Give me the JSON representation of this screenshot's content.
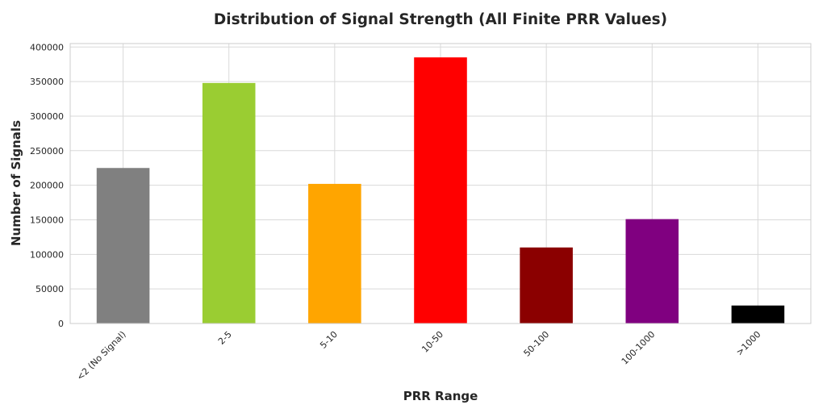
{
  "chart_data": {
    "type": "bar",
    "title": "Distribution of Signal Strength (All Finite PRR Values)",
    "xlabel": "PRR Range",
    "ylabel": "Number of Signals",
    "categories": [
      "<2 (No Signal)",
      "2-5",
      "5-10",
      "10-50",
      "50-100",
      "100-1000",
      ">1000"
    ],
    "values": [
      225000,
      348000,
      202000,
      385000,
      110000,
      151000,
      26000
    ],
    "colors": [
      "#808080",
      "#9acd32",
      "#ffa500",
      "#ff0000",
      "#8b0000",
      "#800080",
      "#000000"
    ],
    "ylim": [
      0,
      405000
    ],
    "yticks": [
      0,
      50000,
      100000,
      150000,
      200000,
      250000,
      300000,
      350000,
      400000
    ],
    "grid": true,
    "legend": "none"
  }
}
